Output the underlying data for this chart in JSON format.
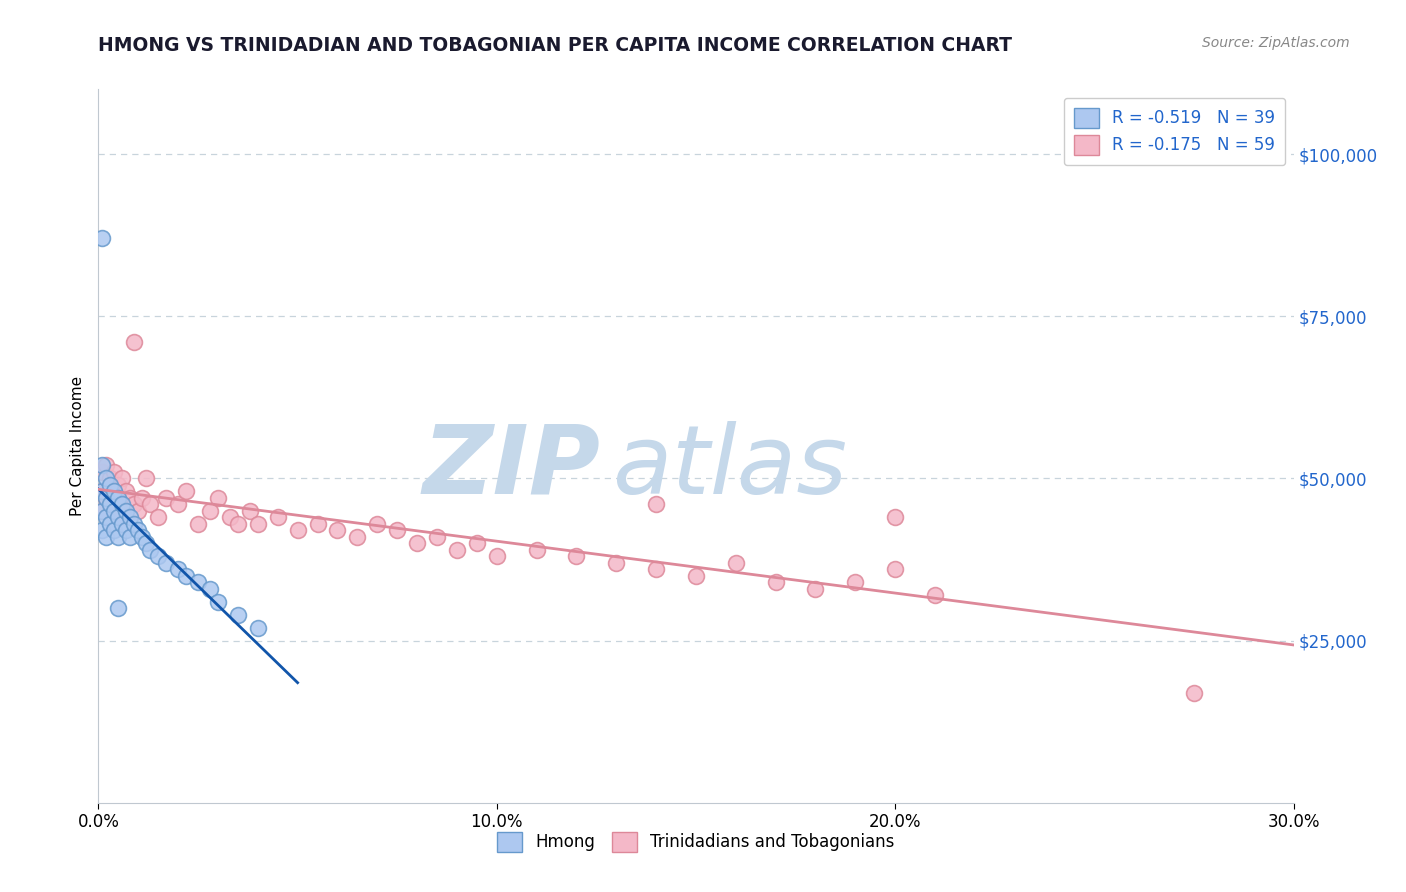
{
  "title": "HMONG VS TRINIDADIAN AND TOBAGONIAN PER CAPITA INCOME CORRELATION CHART",
  "source": "Source: ZipAtlas.com",
  "ylabel": "Per Capita Income",
  "xlim": [
    0.0,
    0.3
  ],
  "ylim": [
    0,
    110000
  ],
  "xtick_labels": [
    "0.0%",
    "10.0%",
    "20.0%",
    "30.0%"
  ],
  "xtick_positions": [
    0.0,
    0.1,
    0.2,
    0.3
  ],
  "ytick_labels": [
    "$25,000",
    "$50,000",
    "$75,000",
    "$100,000"
  ],
  "ytick_positions": [
    25000,
    50000,
    75000,
    100000
  ],
  "hmong_fill": "#adc8f0",
  "hmong_edge": "#6699cc",
  "trini_fill": "#f4b8c8",
  "trini_edge": "#dd8899",
  "hmong_line_color": "#1155aa",
  "trini_line_color": "#dd8899",
  "right_axis_color": "#2266cc",
  "legend_r_color": "#2266cc",
  "watermark_zip_color": "#c5d8ea",
  "watermark_atlas_color": "#c5d8ea",
  "R_hmong": -0.519,
  "N_hmong": 39,
  "R_trini": -0.175,
  "N_trini": 59,
  "background": "#ffffff",
  "grid_color": "#c8d4dc",
  "spine_color": "#c0c8d0",
  "title_color": "#1a1a2e",
  "source_color": "#888888",
  "hmong_x": [
    0.001,
    0.001,
    0.001,
    0.001,
    0.001,
    0.002,
    0.002,
    0.002,
    0.002,
    0.003,
    0.003,
    0.003,
    0.004,
    0.004,
    0.004,
    0.005,
    0.005,
    0.005,
    0.006,
    0.006,
    0.007,
    0.007,
    0.008,
    0.008,
    0.009,
    0.01,
    0.011,
    0.012,
    0.013,
    0.015,
    0.017,
    0.02,
    0.022,
    0.025,
    0.028,
    0.03,
    0.005,
    0.035,
    0.04
  ],
  "hmong_y": [
    87000,
    52000,
    48000,
    45000,
    42000,
    50000,
    47000,
    44000,
    41000,
    49000,
    46000,
    43000,
    48000,
    45000,
    42000,
    47000,
    44000,
    41000,
    46000,
    43000,
    45000,
    42000,
    44000,
    41000,
    43000,
    42000,
    41000,
    40000,
    39000,
    38000,
    37000,
    36000,
    35000,
    34000,
    33000,
    31000,
    30000,
    29000,
    27000
  ],
  "trini_x": [
    0.001,
    0.001,
    0.001,
    0.002,
    0.002,
    0.003,
    0.003,
    0.004,
    0.004,
    0.005,
    0.005,
    0.006,
    0.006,
    0.007,
    0.007,
    0.008,
    0.009,
    0.01,
    0.011,
    0.012,
    0.013,
    0.015,
    0.017,
    0.02,
    0.022,
    0.025,
    0.028,
    0.03,
    0.033,
    0.035,
    0.038,
    0.04,
    0.045,
    0.05,
    0.055,
    0.06,
    0.065,
    0.07,
    0.075,
    0.08,
    0.085,
    0.09,
    0.095,
    0.1,
    0.11,
    0.12,
    0.13,
    0.14,
    0.15,
    0.16,
    0.17,
    0.18,
    0.19,
    0.2,
    0.21,
    0.14,
    0.2,
    0.275,
    0.009
  ],
  "trini_y": [
    51000,
    48000,
    45000,
    52000,
    47000,
    50000,
    46000,
    51000,
    45000,
    49000,
    46000,
    50000,
    45000,
    48000,
    44000,
    47000,
    46000,
    45000,
    47000,
    50000,
    46000,
    44000,
    47000,
    46000,
    48000,
    43000,
    45000,
    47000,
    44000,
    43000,
    45000,
    43000,
    44000,
    42000,
    43000,
    42000,
    41000,
    43000,
    42000,
    40000,
    41000,
    39000,
    40000,
    38000,
    39000,
    38000,
    37000,
    36000,
    35000,
    37000,
    34000,
    33000,
    34000,
    36000,
    32000,
    46000,
    44000,
    17000,
    71000
  ]
}
